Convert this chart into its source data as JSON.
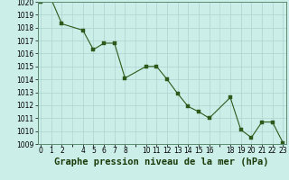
{
  "x": [
    0,
    1,
    2,
    4,
    5,
    6,
    7,
    8,
    10,
    11,
    12,
    13,
    14,
    15,
    16,
    18,
    19,
    20,
    21,
    22,
    23
  ],
  "y": [
    1020.0,
    1020.2,
    1018.3,
    1017.8,
    1016.3,
    1016.8,
    1016.8,
    1014.1,
    1015.0,
    1015.0,
    1014.0,
    1012.9,
    1011.9,
    1011.5,
    1011.0,
    1012.6,
    1010.1,
    1009.5,
    1010.7,
    1010.7,
    1009.1
  ],
  "line_color": "#2d5a1b",
  "marker_color": "#2d5a1b",
  "bg_color": "#cceee8",
  "grid_color": "#aad4ce",
  "title": "Graphe pression niveau de la mer (hPa)",
  "title_color": "#1a3a0a",
  "ylim_min": 1009,
  "ylim_max": 1020,
  "ytick_step": 1,
  "xtick_positions": [
    0,
    1,
    2,
    4,
    5,
    6,
    7,
    8,
    10,
    11,
    12,
    13,
    14,
    15,
    16,
    18,
    19,
    20,
    21,
    22,
    23
  ],
  "xtick_labels": [
    "0",
    "1",
    "2",
    "4",
    "5",
    "6",
    "7",
    "8",
    "10",
    "11",
    "12",
    "13",
    "14",
    "15",
    "16",
    "18",
    "19",
    "20",
    "21",
    "22",
    "23"
  ],
  "title_fontsize": 7.5,
  "tick_fontsize": 5.5
}
